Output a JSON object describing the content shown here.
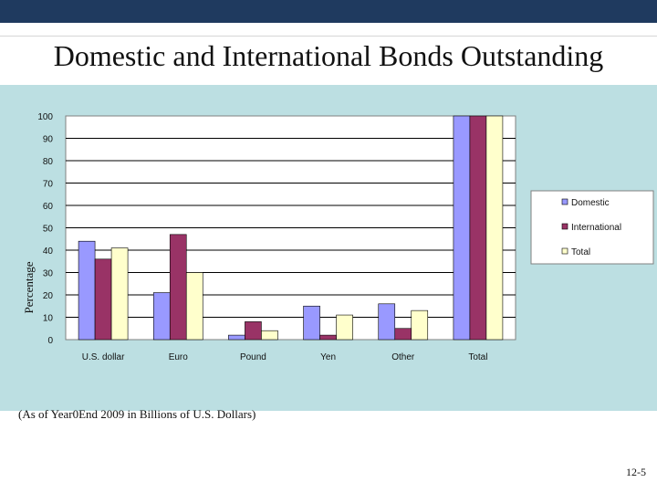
{
  "slide": {
    "title": "Domestic and International Bonds Outstanding",
    "caption": "(As of Year0End 2009 in Billions of U.S. Dollars)",
    "page_number": "12-5"
  },
  "colors": {
    "panel": "#bcdfe2",
    "top_bar": "#1f3a5f",
    "domestic": "#9999ff",
    "international": "#993366",
    "total": "#ffffcc"
  },
  "chart_data": {
    "type": "bar",
    "title": "",
    "xlabel": "",
    "ylabel": "Percentage",
    "ylim": [
      0,
      100
    ],
    "yticks": [
      0,
      10,
      20,
      30,
      40,
      50,
      60,
      70,
      80,
      90,
      100
    ],
    "categories": [
      "U.S. dollar",
      "Euro",
      "Pound",
      "Yen",
      "Other",
      "Total"
    ],
    "series": [
      {
        "name": "Domestic",
        "color": "#9999ff",
        "values": [
          44,
          21,
          2,
          15,
          16,
          100
        ]
      },
      {
        "name": "International",
        "color": "#993366",
        "values": [
          36,
          47,
          8,
          2,
          5,
          100
        ]
      },
      {
        "name": "Total",
        "color": "#ffffcc",
        "values": [
          41,
          30,
          4,
          11,
          13,
          100
        ]
      }
    ],
    "grid": true,
    "legend": "right"
  }
}
